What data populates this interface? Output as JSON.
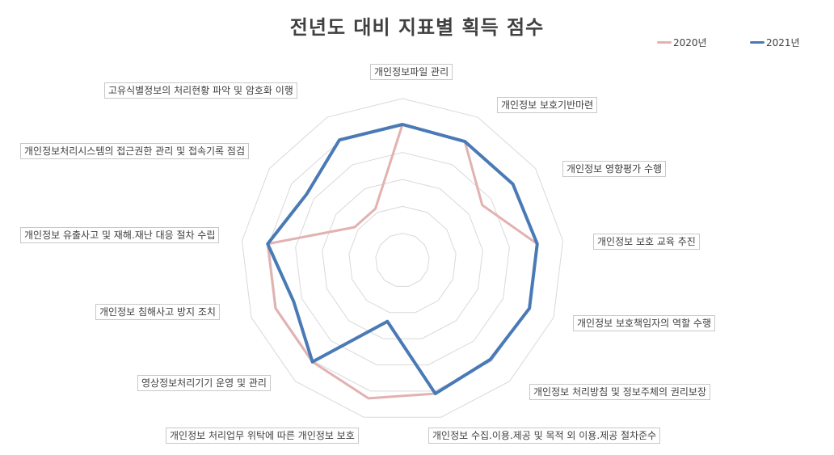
{
  "chart_data": {
    "type": "radar",
    "title": "전년도 대비 지표별 획득 점수",
    "categories": [
      "개인정보파일 관리",
      "개인정보 보호기반마련",
      "개인정보 영향평가 수행",
      "개인정보 보호 교육 추진",
      "개인정보 보호책임자의 역할 수행",
      "개인정보 처리방침 및 정보주체의 권리보장",
      "개인정보 수집.이용.제공 및 목적 외 이용.제공 절차준수",
      "개인정보 처리업무 위탁에 따른 개인정보 보호",
      "영상정보처리기기 운영 및 관리",
      "개인정보 침해사고 방지 조치",
      "개인정보 유출사고 및 재해.재난 대응 절차 수립",
      "개인정보처리시스템의 접근권한 관리 및 접속기록 점검",
      "고유식별정보의 처리현황 파악 및 암호화 이행"
    ],
    "series": [
      {
        "name": "2020년",
        "color": "#e2b2b0",
        "values": [
          0.84,
          0.83,
          0.6,
          0.84,
          0.84,
          0.82,
          0.85,
          0.88,
          0.84,
          0.84,
          0.84,
          0.36,
          0.36
        ]
      },
      {
        "name": "2021년",
        "color": "#4a7ab5",
        "values": [
          0.84,
          0.83,
          0.83,
          0.84,
          0.84,
          0.82,
          0.85,
          0.39,
          0.84,
          0.72,
          0.84,
          0.72,
          0.84
        ]
      }
    ],
    "rlim": [
      0,
      1
    ],
    "grid": true,
    "legend": "top-right"
  }
}
